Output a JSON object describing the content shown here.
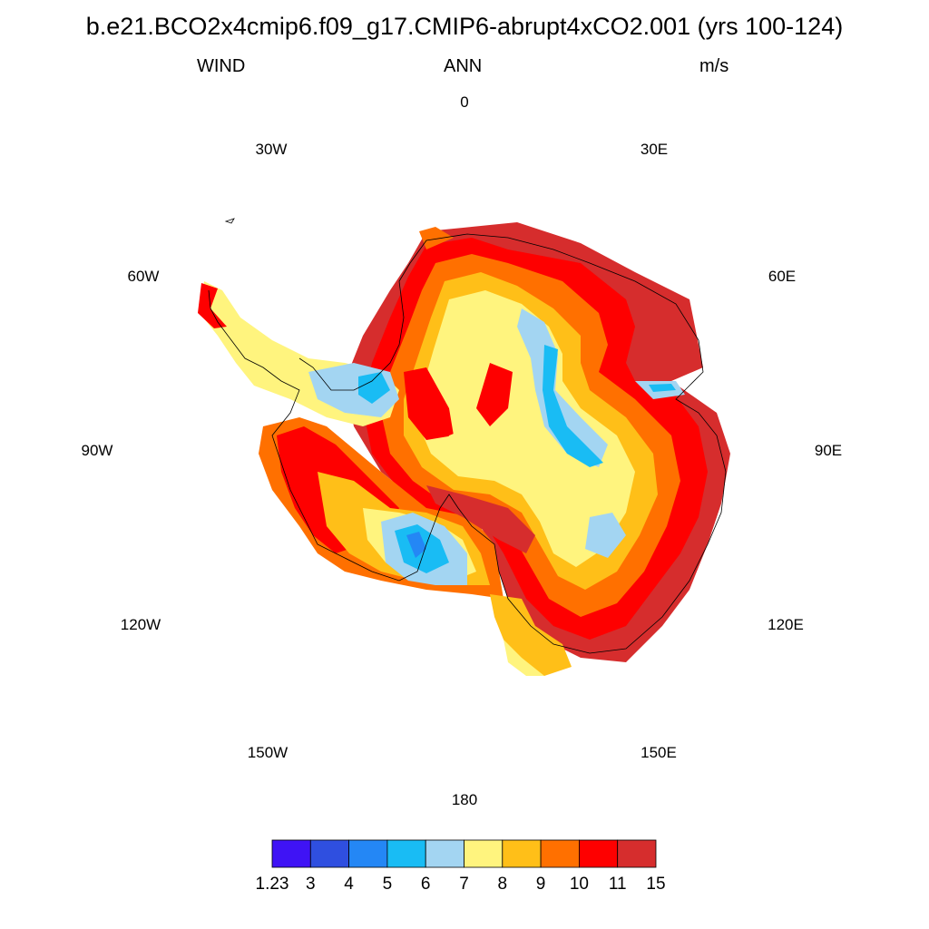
{
  "title": "b.e21.BCO2x4cmip6.f09_g17.CMIP6-abrupt4xCO2.001 (yrs 100-124)",
  "subtitle_left": "WIND",
  "subtitle_center": "ANN",
  "subtitle_right": "m/s",
  "longitude_labels": {
    "lon_0": "0",
    "lon_30e": "30E",
    "lon_60e": "60E",
    "lon_90e": "90E",
    "lon_120e": "120E",
    "lon_150e": "150E",
    "lon_180": "180",
    "lon_150w": "150W",
    "lon_120w": "120W",
    "lon_90w": "90W",
    "lon_60w": "60W",
    "lon_30w": "30W"
  },
  "legend": {
    "colors": [
      "#3f13f5",
      "#2f4fe0",
      "#2487f5",
      "#19bcf4",
      "#a3d5f2",
      "#fff47e",
      "#ffbf18",
      "#ff7000",
      "#fe0000",
      "#d62d2d"
    ],
    "labels": [
      "1.23",
      "3",
      "4",
      "5",
      "6",
      "7",
      "8",
      "9",
      "10",
      "11",
      "15"
    ]
  },
  "map_data": {
    "type": "polar-stereographic filled contour",
    "variable": "WIND",
    "units": "m/s",
    "region": "Antarctica",
    "coastline_color": "#000000"
  }
}
